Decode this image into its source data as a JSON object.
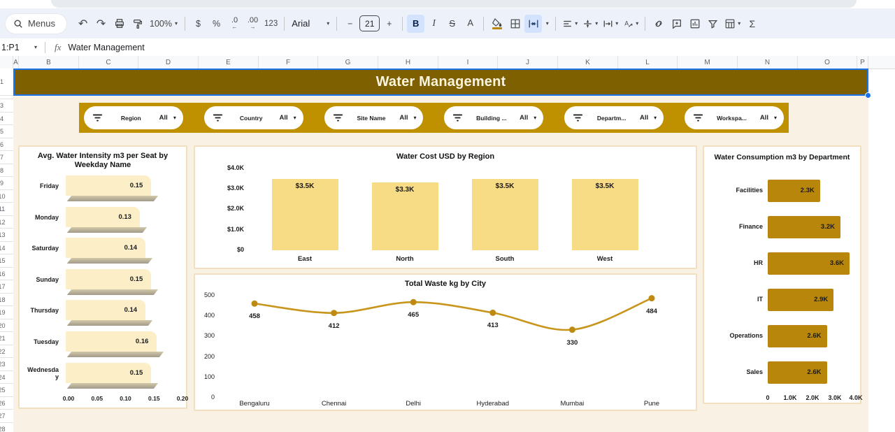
{
  "colors": {
    "banner_bg": "#7F6000",
    "filter_bar_bg": "#BF9000",
    "pale_bar": "#FCEFC7",
    "bar_shadow_dark": "#A29A8A",
    "bar_shadow_light": "#D2C9A9",
    "light_gold_bar": "#F8DB85",
    "dark_gold_bar": "#B8860B",
    "line_color": "#C9961D",
    "selection_blue": "#1A73E8",
    "card_border": "#F2DFC0",
    "sheet_bg": "#F8F1E4",
    "toolbar_bg": "#EDF2FA",
    "active_btn_bg": "#D3E3FD"
  },
  "toolbar": {
    "menus_label": "Menus",
    "undo_glyph": "↶",
    "redo_glyph": "↷",
    "zoom_value": "100%",
    "caret": "▾",
    "currency": "$",
    "percent": "%",
    "decrease_decimal": ".0",
    "decrease_arrow": "←",
    "increase_decimal": ".00",
    "increase_arrow": "→",
    "more_formats": "123",
    "font_value": "Arial",
    "minus": "−",
    "font_size_value": "21",
    "plus": "+",
    "bold": "B",
    "italic": "I",
    "strikethrough": "S",
    "text_color": "A",
    "sigma": "Σ"
  },
  "formula_bar": {
    "name_box": "1:P1",
    "fx_label": "fx",
    "value": "Water Management"
  },
  "sheet": {
    "columns": [
      "A",
      "B",
      "C",
      "D",
      "E",
      "F",
      "G",
      "H",
      "I",
      "J",
      "K",
      "L",
      "M",
      "N",
      "O",
      "P"
    ],
    "row_numbers": [
      "1",
      "3",
      "4",
      "5",
      "6",
      "7",
      "8",
      "9",
      "10",
      "11",
      "12",
      "13",
      "14",
      "15",
      "16",
      "17",
      "18",
      "19",
      "20",
      "21",
      "22",
      "23",
      "24",
      "25",
      "26",
      "27",
      "28"
    ]
  },
  "banner": {
    "title": "Water Management"
  },
  "filters": {
    "items": [
      {
        "label": "Region",
        "value": "All"
      },
      {
        "label": "Country",
        "value": "All"
      },
      {
        "label": "Site Name",
        "value": "All"
      },
      {
        "label": "Building ...",
        "value": "All"
      },
      {
        "label": "Departm...",
        "value": "All"
      },
      {
        "label": "Workspa...",
        "value": "All"
      }
    ]
  },
  "chart_data": [
    {
      "id": "weekday_intensity",
      "type": "bar",
      "orientation": "horizontal",
      "title": "Avg. Water Intensity m3 per Seat by Weekday Name",
      "categories": [
        "Friday",
        "Monday",
        "Saturday",
        "Sunday",
        "Thursday",
        "Tuesday",
        "Wednesday"
      ],
      "values": [
        0.15,
        0.13,
        0.14,
        0.15,
        0.14,
        0.16,
        0.15
      ],
      "value_labels": [
        "0.15",
        "0.13",
        "0.14",
        "0.15",
        "0.14",
        "0.16",
        "0.15"
      ],
      "xticks": [
        "0.00",
        "0.05",
        "0.10",
        "0.15",
        "0.20"
      ],
      "xlim": [
        0,
        0.2
      ],
      "bar_color": "#FCEFC7",
      "effect": "3d-shadow"
    },
    {
      "id": "water_cost_region",
      "type": "bar",
      "orientation": "vertical",
      "title": "Water Cost USD by Region",
      "categories": [
        "East",
        "North",
        "South",
        "West"
      ],
      "values": [
        3.5,
        3.3,
        3.5,
        3.5
      ],
      "value_labels": [
        "$3.5K",
        "$3.3K",
        "$3.5K",
        "$3.5K"
      ],
      "yticks": [
        "$4.0K",
        "$3.0K",
        "$2.0K",
        "$1.0K",
        "$0"
      ],
      "ylim": [
        0,
        4
      ],
      "bar_color": "#F8DB85"
    },
    {
      "id": "waste_city",
      "type": "line",
      "title": "Total Waste kg by City",
      "categories": [
        "Bengaluru",
        "Chennai",
        "Delhi",
        "Hyderabad",
        "Mumbai",
        "Pune"
      ],
      "values": [
        458,
        412,
        465,
        413,
        330,
        484
      ],
      "value_labels": [
        "458",
        "412",
        "465",
        "413",
        "330",
        "484"
      ],
      "yticks": [
        "500",
        "400",
        "300",
        "200",
        "100",
        "0"
      ],
      "ylim": [
        0,
        500
      ],
      "line_color": "#C9961D",
      "marker_color": "#BE8A10"
    },
    {
      "id": "consumption_department",
      "type": "bar",
      "orientation": "horizontal",
      "title": "Water Consumption m3 by Department",
      "categories": [
        "Facilities",
        "Finance",
        "HR",
        "IT",
        "Operations",
        "Sales"
      ],
      "values": [
        2.3,
        3.2,
        3.6,
        2.9,
        2.6,
        2.6
      ],
      "value_labels": [
        "2.3K",
        "3.2K",
        "3.6K",
        "2.9K",
        "2.6K",
        "2.6K"
      ],
      "xticks": [
        "0",
        "1.0K",
        "2.0K",
        "3.0K",
        "4.0K"
      ],
      "xlim": [
        0,
        4
      ],
      "bar_color": "#B8860B"
    }
  ]
}
